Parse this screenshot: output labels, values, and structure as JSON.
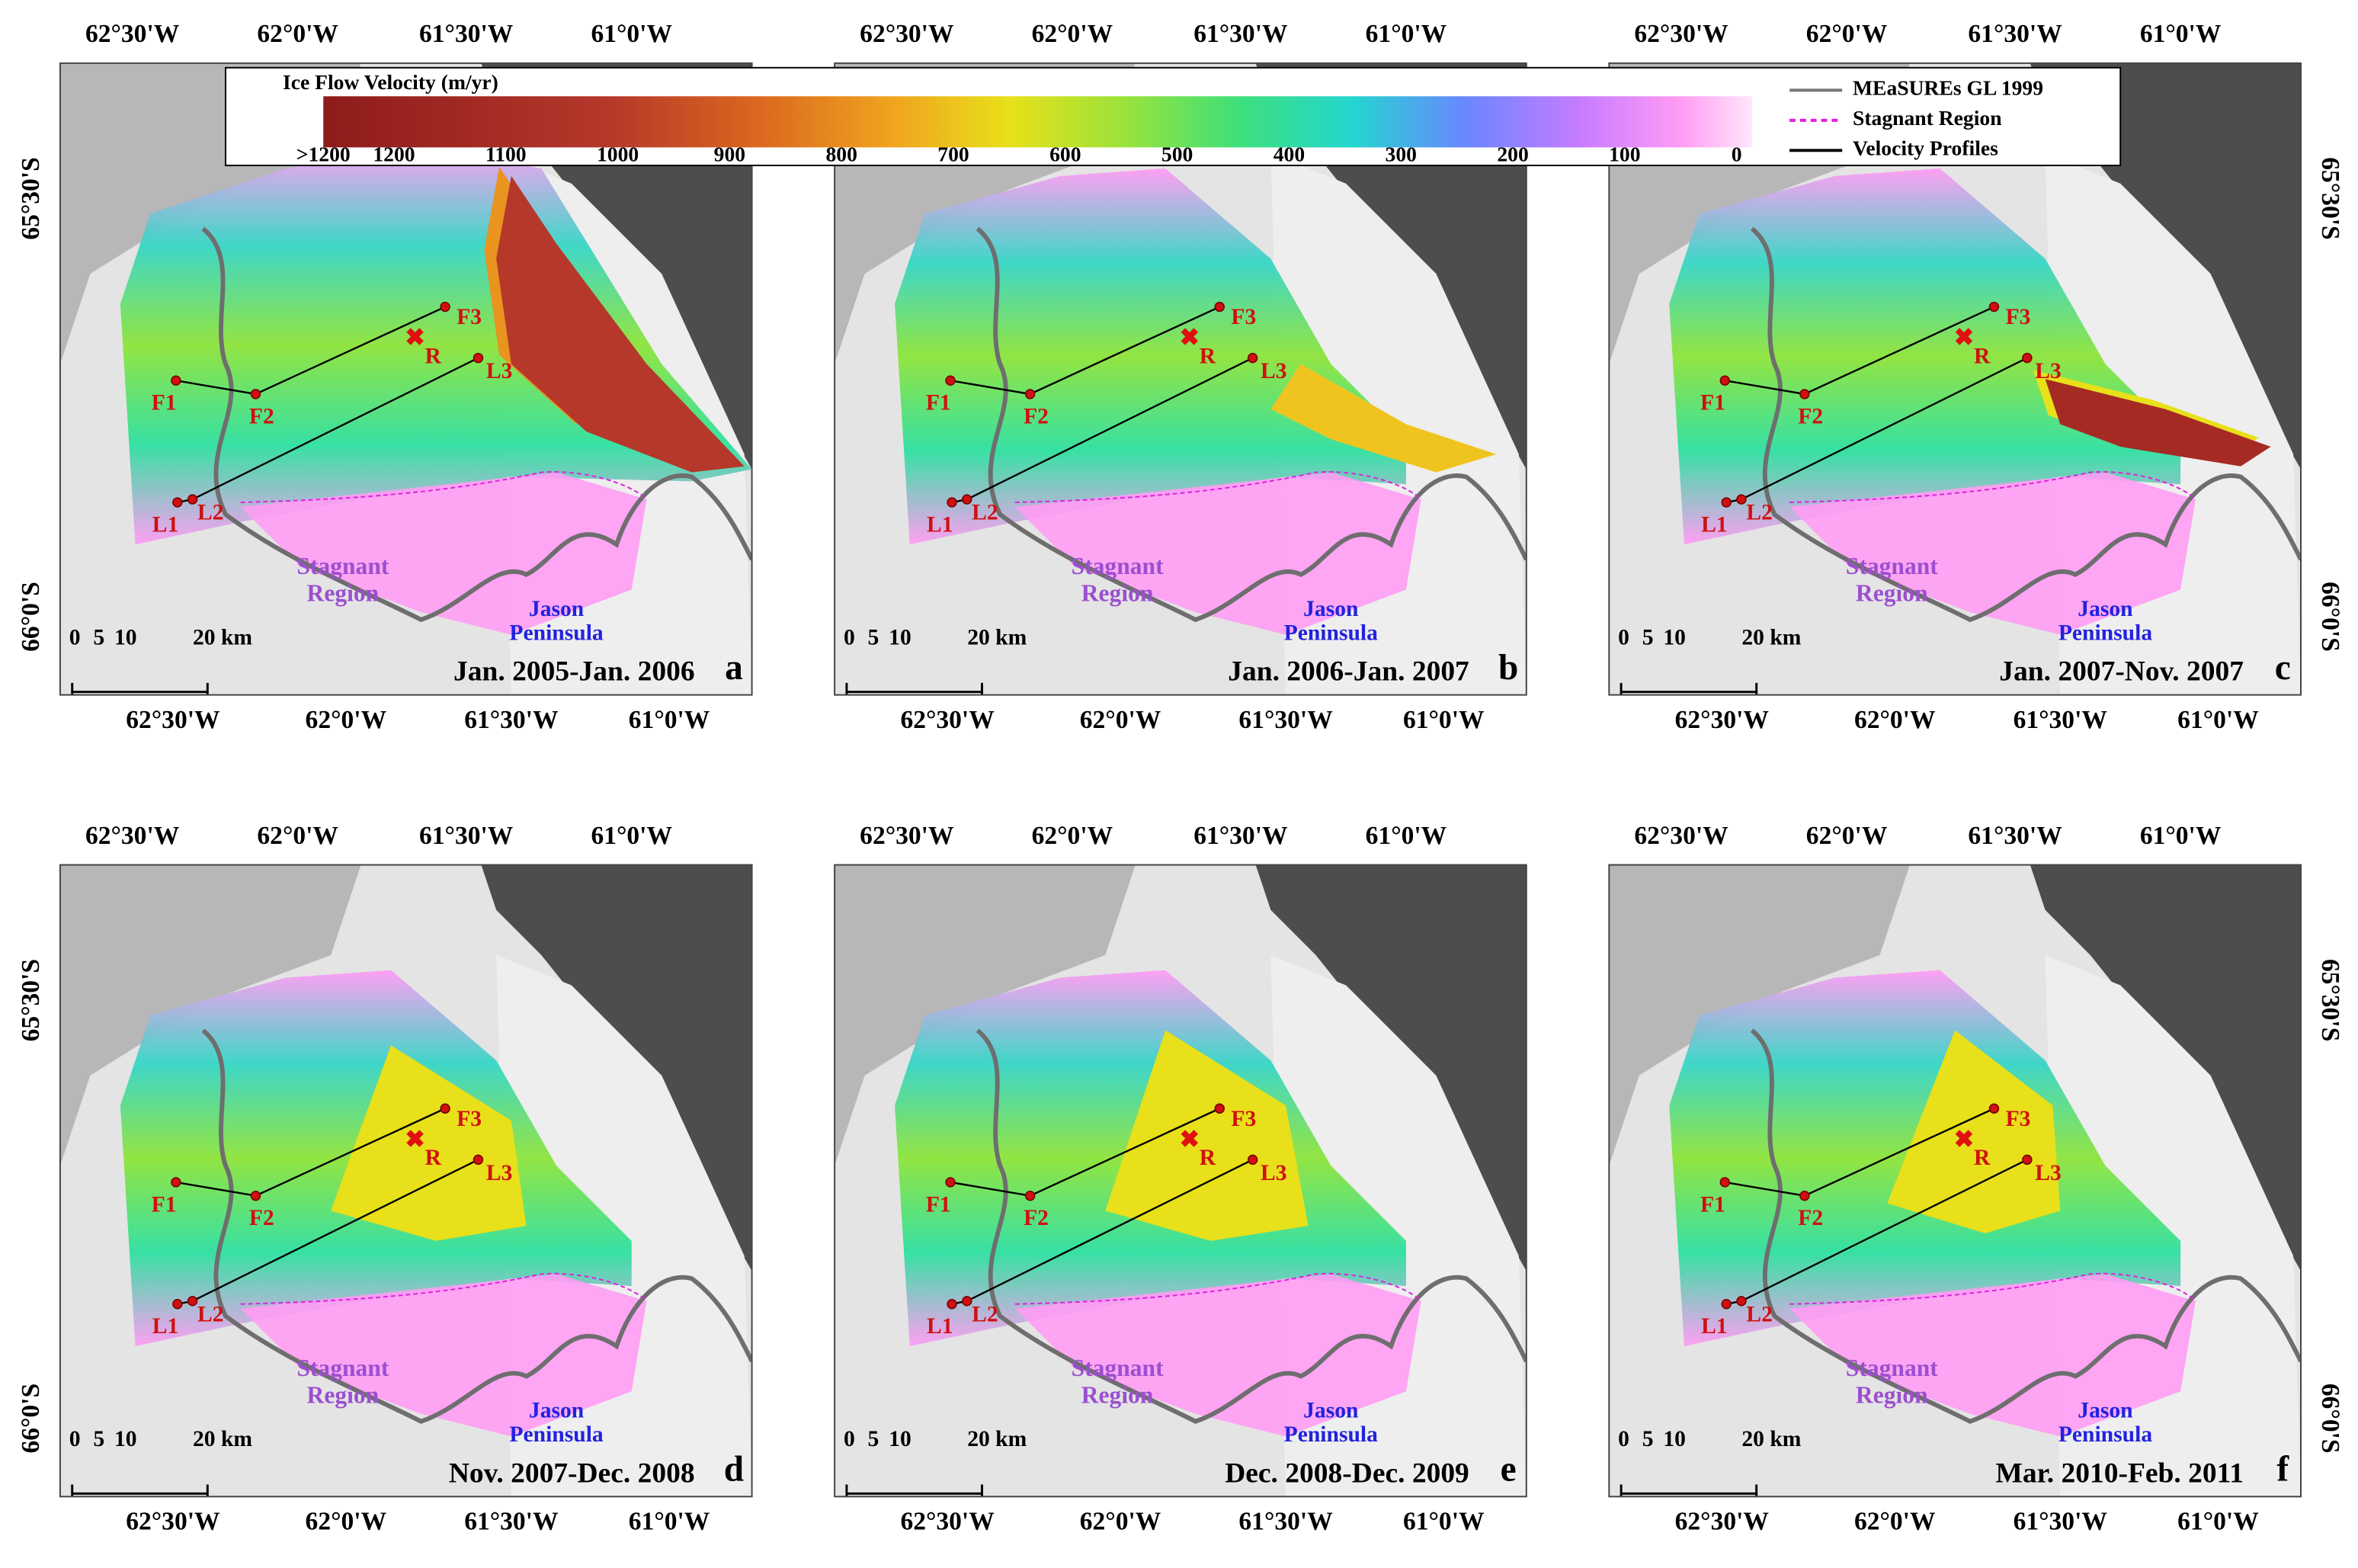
{
  "colorbar": {
    "title": "Ice Flow Velocity (m/yr)",
    "ticks": [
      ">1200",
      "1200",
      "1100",
      "1000",
      "900",
      "800",
      "700",
      "600",
      "500",
      "400",
      "300",
      "200",
      "100",
      "0"
    ]
  },
  "legend": [
    "MEaSUREs GL 1999",
    "Stagnant Region",
    "Velocity Profiles"
  ],
  "axes": {
    "lon": [
      "62°30'W",
      "62°0'W",
      "61°30'W",
      "61°0'W"
    ],
    "lat": [
      "65°30'S",
      "66°0'S"
    ]
  },
  "map_labels": {
    "points": [
      "F1",
      "F2",
      "F3",
      "L1",
      "L2",
      "L3",
      "R"
    ],
    "stagnant": [
      "Stagnant",
      "Region"
    ],
    "jason": [
      "Jason",
      "Peninsula"
    ]
  },
  "scale_bar": [
    "0",
    "5",
    "10",
    "20 km"
  ],
  "panels": [
    {
      "period": "Jan. 2005-Jan. 2006",
      "letter": "a"
    },
    {
      "period": "Jan. 2006-Jan. 2007",
      "letter": "b"
    },
    {
      "period": "Jan. 2007-Nov. 2007",
      "letter": "c"
    },
    {
      "period": "Nov. 2007-Dec. 2008",
      "letter": "d"
    },
    {
      "period": "Dec. 2008-Dec. 2009",
      "letter": "e"
    },
    {
      "period": "Mar. 2010-Feb. 2011",
      "letter": "f"
    }
  ]
}
